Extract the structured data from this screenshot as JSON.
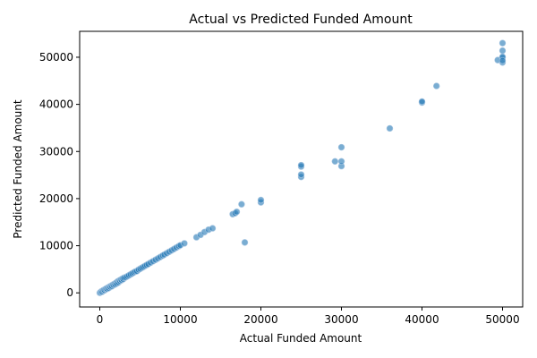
{
  "chart_data": {
    "type": "scatter",
    "title": "Actual vs Predicted Funded Amount",
    "xlabel": "Actual Funded Amount",
    "ylabel": "Predicted Funded Amount",
    "xlim": [
      -2500,
      52500
    ],
    "ylim": [
      -3000,
      55500
    ],
    "xticks": [
      0,
      10000,
      20000,
      30000,
      40000,
      50000
    ],
    "xtick_labels": [
      "0",
      "10000",
      "20000",
      "30000",
      "40000",
      "50000"
    ],
    "yticks": [
      0,
      10000,
      20000,
      30000,
      40000,
      50000
    ],
    "ytick_labels": [
      "0",
      "10000",
      "20000",
      "30000",
      "40000",
      "50000"
    ],
    "grid": false,
    "legend": "none",
    "point_color": "#1f77b4",
    "point_edge_color": "#a8c6e2",
    "point_opacity": 0.6,
    "series": [
      {
        "x": [
          0,
          100,
          200,
          300,
          400,
          500,
          600,
          700,
          800,
          900,
          1000,
          1100,
          1200,
          1300,
          1400,
          1500,
          1600,
          1700,
          1800,
          1900,
          2000,
          2100,
          2200,
          2300,
          2400,
          2500,
          2600,
          2700,
          2800,
          2900,
          3000,
          3200,
          3400,
          3600,
          3800,
          4000,
          4200,
          4400,
          4600,
          4800,
          5000,
          5200,
          5400,
          5600,
          5800,
          6000,
          6300,
          6600,
          6900,
          7200,
          7500,
          7800,
          8000,
          8300,
          8600,
          8900,
          9200,
          9500,
          9800,
          10000,
          10500,
          12000,
          12500,
          13000,
          13500,
          14000,
          16500,
          16800,
          17000,
          17600,
          18000,
          20000,
          20000,
          25000,
          25000,
          25000,
          25000,
          29200,
          30000,
          30000,
          30000,
          36000,
          40000,
          40000,
          41800,
          49400,
          50000,
          50000,
          50000,
          50000,
          50000,
          50000
        ],
        "y": [
          0,
          150,
          300,
          250,
          500,
          600,
          550,
          800,
          900,
          850,
          1100,
          1000,
          1300,
          1250,
          1500,
          1400,
          1700,
          1650,
          1900,
          1800,
          2100,
          2000,
          2400,
          2200,
          2600,
          2500,
          2800,
          2700,
          3000,
          2900,
          3200,
          3300,
          3500,
          3700,
          3900,
          4100,
          4300,
          4500,
          4600,
          4900,
          5100,
          5300,
          5500,
          5700,
          5900,
          6100,
          6400,
          6700,
          7000,
          7300,
          7600,
          7900,
          8100,
          8400,
          8700,
          9000,
          9300,
          9600,
          9900,
          10100,
          10500,
          11800,
          12300,
          12900,
          13400,
          13700,
          16700,
          16900,
          17200,
          18800,
          10700,
          19200,
          19700,
          24600,
          25100,
          26800,
          27100,
          27900,
          26900,
          27900,
          30900,
          34900,
          40400,
          40600,
          43900,
          49400,
          48900,
          49900,
          50100,
          51400,
          53000,
          49300
        ]
      }
    ]
  }
}
